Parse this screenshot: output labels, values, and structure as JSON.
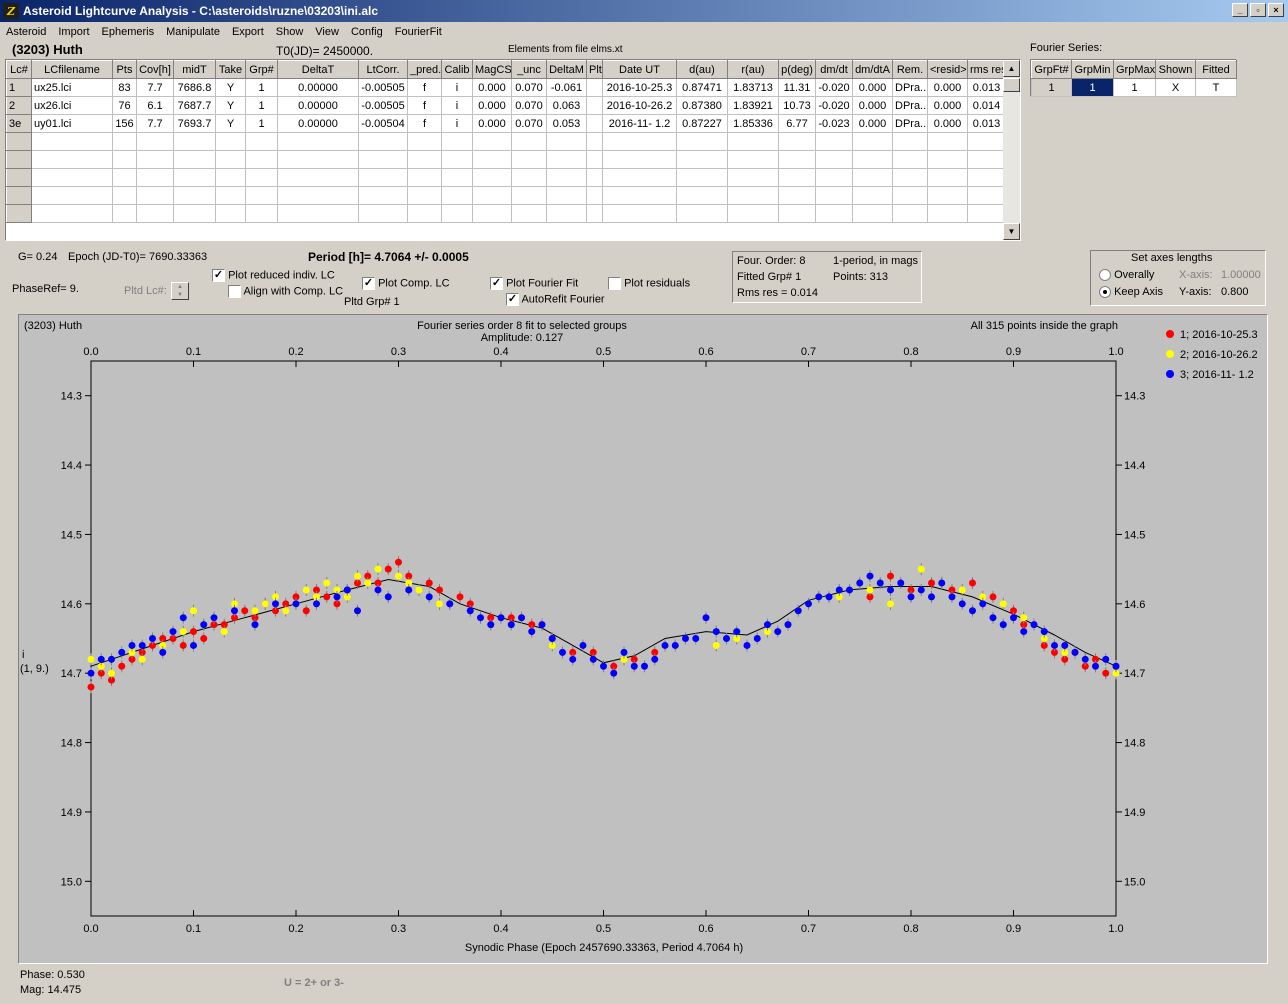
{
  "window": {
    "title": "Asteroid Lightcurve Analysis - C:\\asteroids\\ruzne\\03203\\ini.alc",
    "icon": "app-logo-icon",
    "buttons": [
      "_",
      "▫",
      "×"
    ]
  },
  "menu": [
    "Asteroid",
    "Import",
    "Ephemeris",
    "Manipulate",
    "Export",
    "Show",
    "View",
    "Config",
    "FourierFit"
  ],
  "header": {
    "asteroid_name": "(3203) Huth",
    "t0": "T0(JD)= 2450000.",
    "elements": "Elements from file elms.xt",
    "fourier_label": "Fourier Series:"
  },
  "lc_table": {
    "columns": [
      "Lc#",
      "LCfilename",
      "Pts",
      "Cov[h]",
      "midT",
      "Take",
      "Grp#",
      "DeltaT",
      "LtCorr.",
      "_pred.",
      "Calib",
      "MagCS",
      "_unc",
      "DeltaM",
      "Plt",
      "Date UT",
      "d(au)",
      "r(au)",
      "p(deg)",
      "dm/dt",
      "dm/dtA",
      "Rem.",
      "<resid>",
      "rms res"
    ],
    "rows": [
      [
        "1",
        "ux25.lci",
        "83",
        "7.7",
        "7686.8",
        "Y",
        "1",
        "0.00000",
        "-0.00505",
        "f",
        "i",
        "0.000",
        "0.070",
        "-0.061",
        "",
        "2016-10-25.3",
        "0.87471",
        "1.83713",
        "11.31",
        "-0.020",
        "0.000",
        "DPra...",
        "0.000",
        "0.013"
      ],
      [
        "2",
        "ux26.lci",
        "76",
        "6.1",
        "7687.7",
        "Y",
        "1",
        "0.00000",
        "-0.00505",
        "f",
        "i",
        "0.000",
        "0.070",
        "0.063",
        "",
        "2016-10-26.2",
        "0.87380",
        "1.83921",
        "10.73",
        "-0.020",
        "0.000",
        "DPra...",
        "0.000",
        "0.014"
      ],
      [
        "3e",
        "uy01.lci",
        "156",
        "7.7",
        "7693.7",
        "Y",
        "1",
        "0.00000",
        "-0.00504",
        "f",
        "i",
        "0.000",
        "0.070",
        "0.053",
        "",
        "2016-11- 1.2",
        "0.87227",
        "1.85336",
        "6.77",
        "-0.023",
        "0.000",
        "DPra...",
        "0.000",
        "0.013"
      ]
    ]
  },
  "fourier_table": {
    "columns": [
      "GrpFt#",
      "GrpMin",
      "GrpMax",
      "Shown",
      "Fitted"
    ],
    "row": [
      "1",
      "1",
      "1",
      "X",
      "T"
    ]
  },
  "controls": {
    "g": "G= 0.24",
    "epoch": "Epoch (JD-T0)= 7690.33363",
    "period": "Period [h]= 4.7064 +/- 0.0005",
    "phaseref": "PhaseRef= 9.",
    "pltd_lc": "Pltd Lc#:",
    "pltd_grp": "Pltd Grp#  1",
    "plot_reduced": "Plot reduced indiv. LC",
    "align_comp": "Align with Comp. LC",
    "plot_comp": "Plot Comp. LC",
    "plot_fourier": "Plot Fourier Fit",
    "autorefit": "AutoRefit Fourier",
    "plot_residuals": "Plot residuals",
    "checked_mark": "✓"
  },
  "fourier_info": {
    "order": "Four. Order:  8",
    "period_mode": "1-period, in mags",
    "fitted_grp": "Fitted Grp# 1",
    "points": "Points: 313",
    "rms": "Rms res     = 0.014"
  },
  "axes_box": {
    "title": "Set axes lengths",
    "overally": "Overally",
    "keep_axis": "Keep Axis",
    "x_axis_label": "X-axis:",
    "x_axis_value": "1.00000",
    "y_axis_label": "Y-axis:",
    "y_axis_value": "0.800"
  },
  "status": {
    "phase": "Phase:  0.530",
    "mag": "Mag:    14.475",
    "hint": "U = 2+ or 3-"
  },
  "colors": {
    "red_series": "#ff0000",
    "yellow_series": "#ffff00",
    "blue_series": "#0000ff",
    "plot_bg": "#c0c0c0",
    "selected_cell": "#0a246a"
  },
  "chart_data": {
    "type": "scatter",
    "title": "Fourier series order 8 fit to selected groups",
    "subtitle": "Amplitude: 0.127",
    "corner_left": "(3203) Huth",
    "corner_right": "All 315 points inside the graph",
    "xlabel": "Synodic Phase (Epoch 2457690.33363, Period 4.7064 h)",
    "ylabel": "i",
    "ylabel_sub": "(1, 9.)",
    "xlim": [
      0.0,
      1.0
    ],
    "ylim": [
      15.05,
      14.25
    ],
    "y_inverted": true,
    "x_ticks": [
      "0.0",
      "0.1",
      "0.2",
      "0.3",
      "0.4",
      "0.5",
      "0.6",
      "0.7",
      "0.8",
      "0.9",
      "1.0"
    ],
    "y_ticks": [
      "14.3",
      "14.4",
      "14.5",
      "14.6",
      "14.7",
      "14.8",
      "14.9",
      "15.0"
    ],
    "legend_position": "top-right",
    "series": [
      {
        "name": "1; 2016-10-25.3",
        "color": "#ff0000",
        "points": [
          [
            0.0,
            14.72
          ],
          [
            0.01,
            14.7
          ],
          [
            0.02,
            14.71
          ],
          [
            0.03,
            14.69
          ],
          [
            0.04,
            14.68
          ],
          [
            0.05,
            14.67
          ],
          [
            0.06,
            14.66
          ],
          [
            0.07,
            14.65
          ],
          [
            0.08,
            14.65
          ],
          [
            0.09,
            14.66
          ],
          [
            0.1,
            14.64
          ],
          [
            0.11,
            14.65
          ],
          [
            0.12,
            14.63
          ],
          [
            0.13,
            14.63
          ],
          [
            0.14,
            14.62
          ],
          [
            0.15,
            14.61
          ],
          [
            0.16,
            14.62
          ],
          [
            0.17,
            14.6
          ],
          [
            0.18,
            14.61
          ],
          [
            0.19,
            14.6
          ],
          [
            0.2,
            14.59
          ],
          [
            0.21,
            14.61
          ],
          [
            0.22,
            14.58
          ],
          [
            0.23,
            14.59
          ],
          [
            0.24,
            14.6
          ],
          [
            0.25,
            14.58
          ],
          [
            0.26,
            14.57
          ],
          [
            0.27,
            14.56
          ],
          [
            0.28,
            14.57
          ],
          [
            0.29,
            14.55
          ],
          [
            0.3,
            14.54
          ],
          [
            0.31,
            14.56
          ],
          [
            0.33,
            14.57
          ],
          [
            0.34,
            14.58
          ],
          [
            0.35,
            14.6
          ],
          [
            0.36,
            14.59
          ],
          [
            0.37,
            14.6
          ],
          [
            0.39,
            14.62
          ],
          [
            0.41,
            14.62
          ],
          [
            0.42,
            14.62
          ],
          [
            0.43,
            14.63
          ],
          [
            0.45,
            14.65
          ],
          [
            0.47,
            14.67
          ],
          [
            0.49,
            14.67
          ],
          [
            0.51,
            14.69
          ],
          [
            0.53,
            14.68
          ],
          [
            0.55,
            14.67
          ],
          [
            0.76,
            14.59
          ],
          [
            0.78,
            14.56
          ],
          [
            0.8,
            14.58
          ],
          [
            0.82,
            14.57
          ],
          [
            0.84,
            14.58
          ],
          [
            0.86,
            14.57
          ],
          [
            0.88,
            14.59
          ],
          [
            0.9,
            14.61
          ],
          [
            0.91,
            14.63
          ],
          [
            0.93,
            14.66
          ],
          [
            0.94,
            14.67
          ],
          [
            0.95,
            14.68
          ],
          [
            0.96,
            14.67
          ],
          [
            0.97,
            14.69
          ],
          [
            0.98,
            14.68
          ],
          [
            0.99,
            14.7
          ],
          [
            1.0,
            14.69
          ]
        ]
      },
      {
        "name": "2; 2016-10-26.2",
        "color": "#ffff00",
        "points": [
          [
            0.0,
            14.68
          ],
          [
            0.01,
            14.69
          ],
          [
            0.02,
            14.7
          ],
          [
            0.04,
            14.67
          ],
          [
            0.05,
            14.68
          ],
          [
            0.07,
            14.66
          ],
          [
            0.09,
            14.64
          ],
          [
            0.1,
            14.61
          ],
          [
            0.11,
            14.63
          ],
          [
            0.12,
            14.62
          ],
          [
            0.13,
            14.64
          ],
          [
            0.14,
            14.6
          ],
          [
            0.16,
            14.61
          ],
          [
            0.17,
            14.6
          ],
          [
            0.18,
            14.59
          ],
          [
            0.19,
            14.61
          ],
          [
            0.2,
            14.6
          ],
          [
            0.21,
            14.58
          ],
          [
            0.22,
            14.59
          ],
          [
            0.23,
            14.57
          ],
          [
            0.24,
            14.58
          ],
          [
            0.25,
            14.59
          ],
          [
            0.26,
            14.56
          ],
          [
            0.27,
            14.57
          ],
          [
            0.28,
            14.55
          ],
          [
            0.3,
            14.56
          ],
          [
            0.31,
            14.57
          ],
          [
            0.32,
            14.58
          ],
          [
            0.34,
            14.6
          ],
          [
            0.45,
            14.66
          ],
          [
            0.52,
            14.68
          ],
          [
            0.61,
            14.66
          ],
          [
            0.63,
            14.65
          ],
          [
            0.66,
            14.64
          ],
          [
            0.71,
            14.59
          ],
          [
            0.73,
            14.59
          ],
          [
            0.76,
            14.58
          ],
          [
            0.78,
            14.6
          ],
          [
            0.81,
            14.55
          ],
          [
            0.83,
            14.57
          ],
          [
            0.85,
            14.58
          ],
          [
            0.87,
            14.59
          ],
          [
            0.89,
            14.6
          ],
          [
            0.91,
            14.62
          ],
          [
            0.93,
            14.65
          ],
          [
            0.95,
            14.67
          ],
          [
            0.97,
            14.68
          ],
          [
            0.98,
            14.69
          ],
          [
            1.0,
            14.7
          ]
        ]
      },
      {
        "name": "3; 2016-11- 1.2",
        "color": "#0000ff",
        "points": [
          [
            0.0,
            14.7
          ],
          [
            0.01,
            14.68
          ],
          [
            0.02,
            14.68
          ],
          [
            0.03,
            14.67
          ],
          [
            0.04,
            14.66
          ],
          [
            0.05,
            14.66
          ],
          [
            0.06,
            14.65
          ],
          [
            0.07,
            14.67
          ],
          [
            0.08,
            14.64
          ],
          [
            0.09,
            14.62
          ],
          [
            0.1,
            14.66
          ],
          [
            0.11,
            14.63
          ],
          [
            0.12,
            14.62
          ],
          [
            0.14,
            14.61
          ],
          [
            0.16,
            14.63
          ],
          [
            0.18,
            14.6
          ],
          [
            0.2,
            14.6
          ],
          [
            0.22,
            14.6
          ],
          [
            0.24,
            14.59
          ],
          [
            0.25,
            14.58
          ],
          [
            0.26,
            14.61
          ],
          [
            0.28,
            14.58
          ],
          [
            0.29,
            14.59
          ],
          [
            0.31,
            14.58
          ],
          [
            0.33,
            14.59
          ],
          [
            0.35,
            14.6
          ],
          [
            0.37,
            14.61
          ],
          [
            0.38,
            14.62
          ],
          [
            0.39,
            14.63
          ],
          [
            0.4,
            14.62
          ],
          [
            0.41,
            14.63
          ],
          [
            0.42,
            14.62
          ],
          [
            0.43,
            14.64
          ],
          [
            0.44,
            14.63
          ],
          [
            0.45,
            14.65
          ],
          [
            0.46,
            14.67
          ],
          [
            0.47,
            14.68
          ],
          [
            0.48,
            14.66
          ],
          [
            0.49,
            14.68
          ],
          [
            0.5,
            14.69
          ],
          [
            0.51,
            14.7
          ],
          [
            0.52,
            14.67
          ],
          [
            0.53,
            14.69
          ],
          [
            0.54,
            14.69
          ],
          [
            0.55,
            14.68
          ],
          [
            0.56,
            14.66
          ],
          [
            0.57,
            14.66
          ],
          [
            0.58,
            14.65
          ],
          [
            0.59,
            14.65
          ],
          [
            0.6,
            14.62
          ],
          [
            0.61,
            14.64
          ],
          [
            0.62,
            14.65
          ],
          [
            0.63,
            14.64
          ],
          [
            0.64,
            14.66
          ],
          [
            0.65,
            14.65
          ],
          [
            0.66,
            14.63
          ],
          [
            0.67,
            14.64
          ],
          [
            0.68,
            14.63
          ],
          [
            0.69,
            14.61
          ],
          [
            0.7,
            14.6
          ],
          [
            0.71,
            14.59
          ],
          [
            0.72,
            14.59
          ],
          [
            0.73,
            14.58
          ],
          [
            0.74,
            14.58
          ],
          [
            0.75,
            14.57
          ],
          [
            0.76,
            14.56
          ],
          [
            0.77,
            14.57
          ],
          [
            0.78,
            14.58
          ],
          [
            0.79,
            14.57
          ],
          [
            0.8,
            14.59
          ],
          [
            0.81,
            14.58
          ],
          [
            0.82,
            14.59
          ],
          [
            0.83,
            14.57
          ],
          [
            0.84,
            14.59
          ],
          [
            0.85,
            14.6
          ],
          [
            0.86,
            14.61
          ],
          [
            0.87,
            14.6
          ],
          [
            0.88,
            14.62
          ],
          [
            0.89,
            14.63
          ],
          [
            0.9,
            14.62
          ],
          [
            0.91,
            14.64
          ],
          [
            0.92,
            14.63
          ],
          [
            0.93,
            14.64
          ],
          [
            0.94,
            14.66
          ],
          [
            0.95,
            14.66
          ],
          [
            0.96,
            14.67
          ],
          [
            0.97,
            14.68
          ],
          [
            0.98,
            14.69
          ],
          [
            0.99,
            14.68
          ],
          [
            1.0,
            14.69
          ]
        ]
      }
    ],
    "fit_curve": [
      [
        0.0,
        14.69
      ],
      [
        0.05,
        14.665
      ],
      [
        0.1,
        14.64
      ],
      [
        0.15,
        14.62
      ],
      [
        0.2,
        14.6
      ],
      [
        0.25,
        14.58
      ],
      [
        0.29,
        14.565
      ],
      [
        0.33,
        14.575
      ],
      [
        0.36,
        14.6
      ],
      [
        0.4,
        14.62
      ],
      [
        0.44,
        14.635
      ],
      [
        0.47,
        14.66
      ],
      [
        0.5,
        14.685
      ],
      [
        0.53,
        14.675
      ],
      [
        0.56,
        14.65
      ],
      [
        0.6,
        14.64
      ],
      [
        0.64,
        14.645
      ],
      [
        0.67,
        14.625
      ],
      [
        0.7,
        14.595
      ],
      [
        0.74,
        14.58
      ],
      [
        0.78,
        14.575
      ],
      [
        0.82,
        14.575
      ],
      [
        0.86,
        14.59
      ],
      [
        0.9,
        14.615
      ],
      [
        0.94,
        14.645
      ],
      [
        0.97,
        14.67
      ],
      [
        1.0,
        14.69
      ]
    ]
  }
}
